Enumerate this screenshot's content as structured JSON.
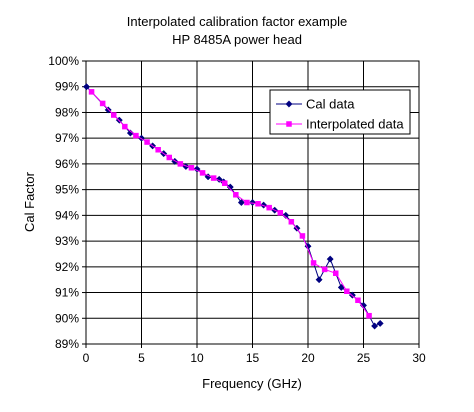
{
  "chart_data": {
    "type": "line",
    "title": "Interpolated calibration factor example",
    "subtitle": "HP 8485A power head",
    "xlabel": "Frequency (GHz)",
    "ylabel": "Cal Factor",
    "xlim": [
      0,
      30
    ],
    "ylim": [
      89,
      100
    ],
    "xticks": [
      0,
      5,
      10,
      15,
      20,
      25,
      30
    ],
    "yticks": [
      89,
      90,
      91,
      92,
      93,
      94,
      95,
      96,
      97,
      98,
      99,
      100
    ],
    "ytick_labels": [
      "89%",
      "90%",
      "91%",
      "92%",
      "93%",
      "94%",
      "95%",
      "96%",
      "97%",
      "98%",
      "99%",
      "100%"
    ],
    "grid": true,
    "legend_position": "top-right",
    "series": [
      {
        "name": "Cal data",
        "color": "#000080",
        "marker": "diamond",
        "x": [
          0.05,
          2.0,
          3.0,
          4.0,
          5.0,
          6.0,
          7.0,
          8.0,
          9.0,
          10.0,
          11.0,
          12.0,
          12.4,
          13.0,
          14.0,
          15.0,
          16.0,
          17.0,
          18.0,
          19.0,
          20.0,
          21.0,
          22.0,
          23.0,
          24.0,
          25.0,
          26.0,
          26.5
        ],
        "y": [
          99.0,
          98.1,
          97.7,
          97.2,
          97.0,
          96.7,
          96.4,
          96.1,
          95.9,
          95.8,
          95.5,
          95.4,
          95.3,
          95.1,
          94.5,
          94.5,
          94.4,
          94.2,
          94.0,
          93.5,
          92.8,
          91.5,
          92.3,
          91.2,
          90.9,
          90.5,
          89.7,
          89.8
        ]
      },
      {
        "name": "Interpolated data",
        "color": "#ff00ff",
        "marker": "square",
        "x": [
          0.5,
          1.5,
          2.5,
          3.5,
          4.5,
          5.5,
          6.5,
          7.5,
          8.5,
          9.5,
          10.5,
          11.5,
          12.5,
          13.5,
          14.5,
          15.5,
          16.5,
          17.5,
          18.5,
          19.5,
          20.5,
          21.5,
          22.5,
          23.5,
          24.5,
          25.5
        ],
        "y": [
          98.8,
          98.35,
          97.9,
          97.45,
          97.1,
          96.85,
          96.55,
          96.25,
          96.0,
          95.85,
          95.65,
          95.45,
          95.25,
          94.8,
          94.5,
          94.45,
          94.3,
          94.1,
          93.75,
          93.2,
          92.15,
          91.9,
          91.75,
          91.05,
          90.7,
          90.1
        ]
      }
    ]
  }
}
